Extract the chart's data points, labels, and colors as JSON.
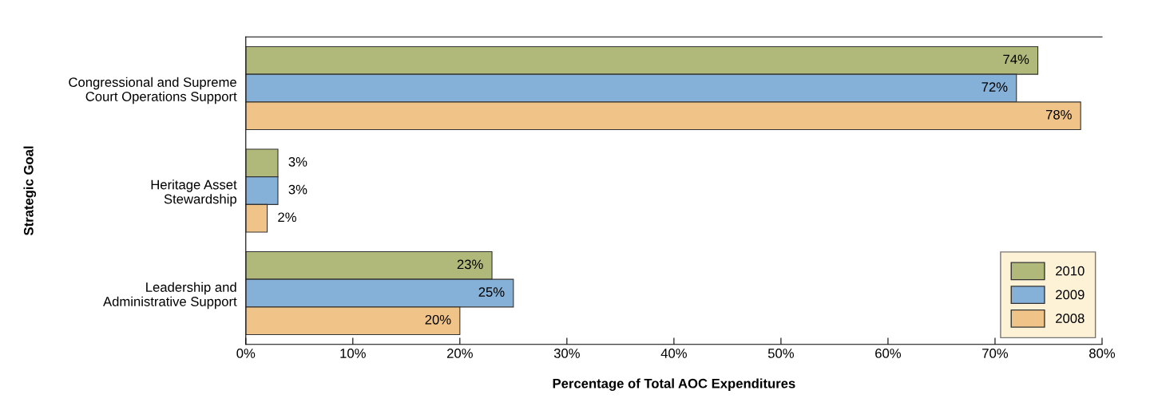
{
  "chart_data": {
    "type": "bar",
    "orientation": "horizontal",
    "xlabel": "Percentage of Total AOC Expenditures",
    "ylabel": "Strategic Goal",
    "categories": [
      "Congressional and Supreme\nCourt Operations Support",
      "Heritage Asset\nStewardship",
      "Leadership and\nAdministrative Support"
    ],
    "series": [
      {
        "name": "2010",
        "color": "#b0b87a",
        "values": [
          74,
          3,
          23
        ],
        "value_labels": [
          "74%",
          "3%",
          "23%"
        ]
      },
      {
        "name": "2009",
        "color": "#85b0d8",
        "values": [
          72,
          3,
          25
        ],
        "value_labels": [
          "72%",
          "3%",
          "25%"
        ]
      },
      {
        "name": "2008",
        "color": "#f0c488",
        "values": [
          78,
          2,
          20
        ],
        "value_labels": [
          "78%",
          "2%",
          "20%"
        ]
      }
    ],
    "xlim": [
      0,
      80
    ],
    "xticks": [
      {
        "value": 0,
        "label": "0%"
      },
      {
        "value": 10,
        "label": "10%"
      },
      {
        "value": 20,
        "label": "20%"
      },
      {
        "value": 30,
        "label": "30%"
      },
      {
        "value": 40,
        "label": "40%"
      },
      {
        "value": 50,
        "label": "50%"
      },
      {
        "value": 60,
        "label": "60%"
      },
      {
        "value": 70,
        "label": "70%"
      },
      {
        "value": 80,
        "label": "80%"
      }
    ],
    "legend": "lower right",
    "grid": false
  }
}
